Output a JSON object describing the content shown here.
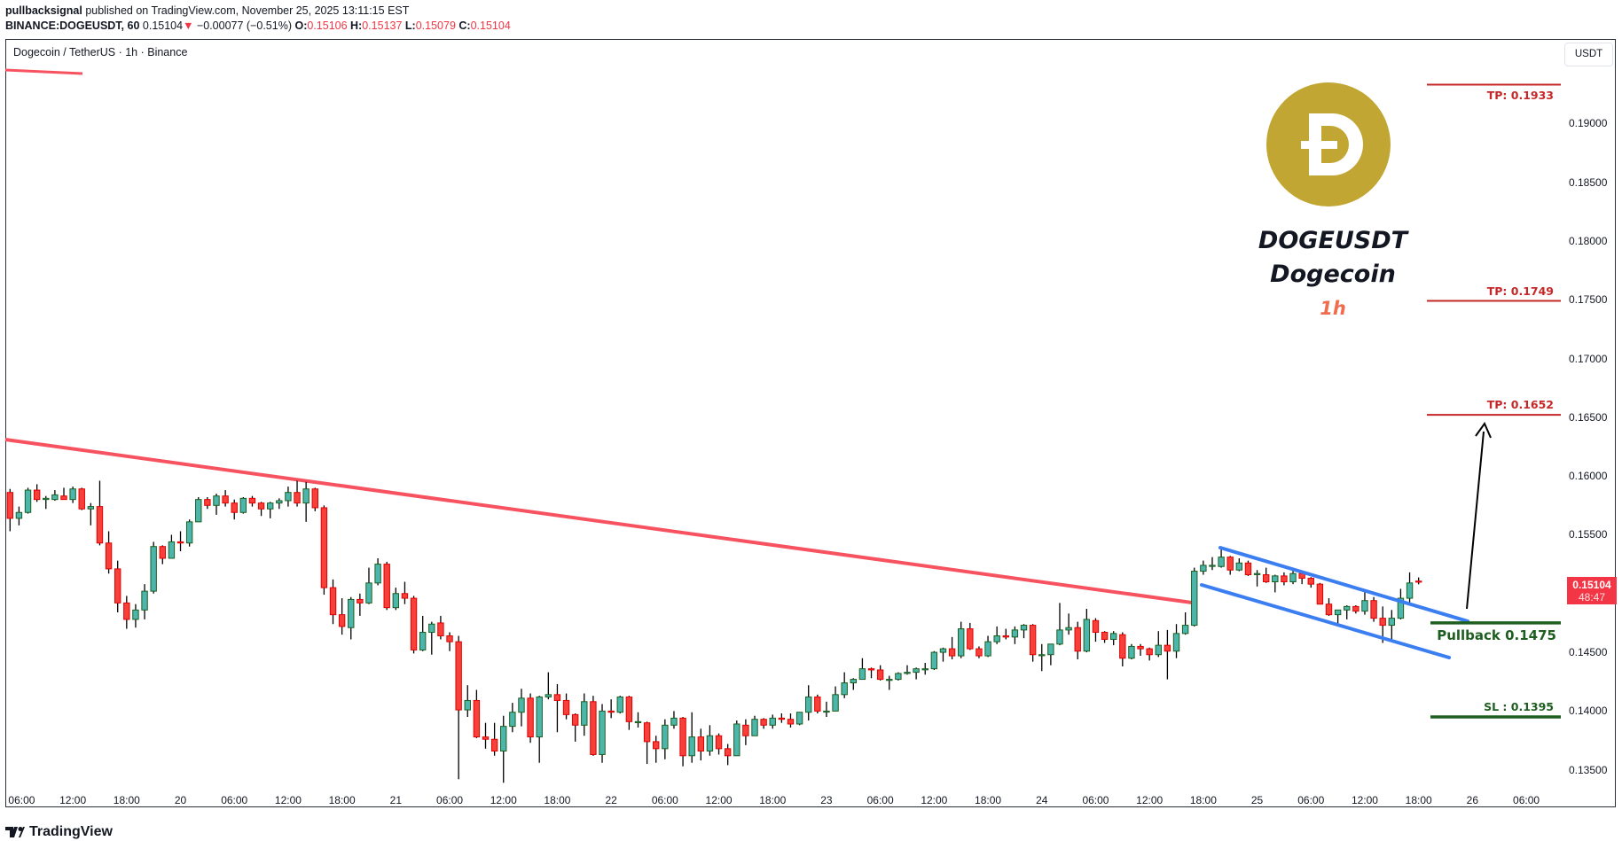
{
  "header": {
    "author": "pullbacksignal",
    "published": "published on TradingView.com, November 25, 2025 13:11:15 EST",
    "symbol": "BINANCE:DOGEUSDT, 60",
    "last": "0.15104",
    "change": "−0.00077 (−0.51%)",
    "o_label": "O:",
    "o": "0.15106",
    "h_label": "H:",
    "h": "0.15137",
    "l_label": "L:",
    "l": "0.15079",
    "c_label": "C:",
    "c": "0.15104"
  },
  "chart_title": "Dogecoin / TetherUS · 1h · Binance",
  "currency_button": "USDT",
  "overlay": {
    "ticker": "DOGEUSDT",
    "name": "Dogecoin",
    "timeframe": "1h",
    "logo_color": "#C2A633",
    "timeframe_color": "#EF6C4F"
  },
  "levels": [
    {
      "label": "TP: 0.1933",
      "price": 0.1933,
      "color": "#C62828",
      "label_pos": "below"
    },
    {
      "label": "TP: 0.1749",
      "price": 0.1749,
      "color": "#C62828",
      "label_pos": "above"
    },
    {
      "label": "TP: 0.1652",
      "price": 0.1652,
      "color": "#C62828",
      "label_pos": "above"
    },
    {
      "label": "Pullback 0.1475",
      "price": 0.1475,
      "color": "#1E5E20",
      "label_pos": "below"
    },
    {
      "label": "SL : 0.1395",
      "price": 0.1395,
      "color": "#1E5E20",
      "label_pos": "above"
    }
  ],
  "last_price_badge": {
    "price": "0.15104",
    "countdown": "48:47",
    "color": "#F23645"
  },
  "footer": {
    "brand": "TradingView"
  },
  "chart_data": {
    "type": "candlestick",
    "interval": "1h",
    "first_candle": "2025-11-19 05:00",
    "ohlc_order": [
      "open",
      "high",
      "low",
      "close"
    ],
    "up_color": "#4DB6AC",
    "down_color": "#F7403A",
    "y_ticks": [
      "0.19000",
      "0.18500",
      "0.18000",
      "0.17500",
      "0.17000",
      "0.16500",
      "0.16000",
      "0.15500",
      "0.15000",
      "0.14500",
      "0.14000",
      "0.13500"
    ],
    "x_ticks": [
      "06:00",
      "12:00",
      "18:00",
      "20",
      "06:00",
      "12:00",
      "18:00",
      "21",
      "06:00",
      "12:00",
      "18:00",
      "22",
      "06:00",
      "12:00",
      "18:00",
      "23",
      "06:00",
      "12:00",
      "18:00",
      "24",
      "06:00",
      "12:00",
      "18:00",
      "25",
      "06:00",
      "12:00",
      "18:00",
      "26",
      "06:00"
    ],
    "ylim": [
      0.133,
      0.196
    ],
    "grid": false,
    "candles": [
      [
        0.1586,
        0.1589,
        0.1553,
        0.1564
      ],
      [
        0.1564,
        0.1574,
        0.1558,
        0.1569
      ],
      [
        0.1569,
        0.159,
        0.1568,
        0.1588
      ],
      [
        0.1588,
        0.1593,
        0.1578,
        0.158
      ],
      [
        0.158,
        0.1583,
        0.1572,
        0.1581
      ],
      [
        0.158,
        0.1588,
        0.1579,
        0.1584
      ],
      [
        0.1583,
        0.159,
        0.158,
        0.158
      ],
      [
        0.158,
        0.1591,
        0.1577,
        0.1589
      ],
      [
        0.1589,
        0.159,
        0.1571,
        0.1572
      ],
      [
        0.1572,
        0.1577,
        0.1558,
        0.1574
      ],
      [
        0.1574,
        0.1596,
        0.1541,
        0.1543
      ],
      [
        0.1543,
        0.1553,
        0.1517,
        0.1521
      ],
      [
        0.1521,
        0.1528,
        0.1484,
        0.1492
      ],
      [
        0.1492,
        0.1498,
        0.147,
        0.1478
      ],
      [
        0.1478,
        0.1491,
        0.1471,
        0.1486
      ],
      [
        0.1486,
        0.1508,
        0.1478,
        0.1502
      ],
      [
        0.1502,
        0.1544,
        0.15,
        0.154
      ],
      [
        0.154,
        0.1541,
        0.1525,
        0.153
      ],
      [
        0.153,
        0.155,
        0.153,
        0.1544
      ],
      [
        0.1544,
        0.1553,
        0.1536,
        0.1543
      ],
      [
        0.1543,
        0.1563,
        0.154,
        0.1561
      ],
      [
        0.1561,
        0.1582,
        0.1561,
        0.158
      ],
      [
        0.158,
        0.1582,
        0.1572,
        0.1575
      ],
      [
        0.1575,
        0.1585,
        0.1567,
        0.1583
      ],
      [
        0.1583,
        0.1588,
        0.1574,
        0.1577
      ],
      [
        0.1577,
        0.158,
        0.1563,
        0.1569
      ],
      [
        0.1569,
        0.1582,
        0.1568,
        0.1581
      ],
      [
        0.1581,
        0.1583,
        0.1574,
        0.1577
      ],
      [
        0.1577,
        0.1578,
        0.1566,
        0.1572
      ],
      [
        0.1572,
        0.1578,
        0.1564,
        0.1577
      ],
      [
        0.1577,
        0.1581,
        0.1572,
        0.1579
      ],
      [
        0.1579,
        0.1591,
        0.1574,
        0.1586
      ],
      [
        0.1586,
        0.1596,
        0.1574,
        0.1577
      ],
      [
        0.1577,
        0.1595,
        0.1561,
        0.1589
      ],
      [
        0.1589,
        0.159,
        0.157,
        0.1573
      ],
      [
        0.1573,
        0.1575,
        0.1499,
        0.1505
      ],
      [
        0.1505,
        0.1512,
        0.1474,
        0.1482
      ],
      [
        0.1482,
        0.1496,
        0.1465,
        0.1472
      ],
      [
        0.1471,
        0.1497,
        0.1461,
        0.1495
      ],
      [
        0.1495,
        0.15,
        0.1481,
        0.1492
      ],
      [
        0.1492,
        0.1522,
        0.1491,
        0.1509
      ],
      [
        0.1509,
        0.153,
        0.1507,
        0.1525
      ],
      [
        0.1525,
        0.1527,
        0.1486,
        0.1488
      ],
      [
        0.1488,
        0.1505,
        0.1486,
        0.15
      ],
      [
        0.15,
        0.151,
        0.1491,
        0.1496
      ],
      [
        0.1496,
        0.1498,
        0.1449,
        0.1452
      ],
      [
        0.1452,
        0.1481,
        0.1451,
        0.1467
      ],
      [
        0.1467,
        0.1476,
        0.1448,
        0.1474
      ],
      [
        0.1475,
        0.1481,
        0.1461,
        0.1464
      ],
      [
        0.1464,
        0.1467,
        0.1451,
        0.1459
      ],
      [
        0.1459,
        0.1464,
        0.1342,
        0.1401
      ],
      [
        0.1401,
        0.1422,
        0.1395,
        0.1409
      ],
      [
        0.1409,
        0.1418,
        0.1377,
        0.1378
      ],
      [
        0.1378,
        0.139,
        0.1368,
        0.1376
      ],
      [
        0.1376,
        0.139,
        0.1362,
        0.1366
      ],
      [
        0.1366,
        0.1396,
        0.1339,
        0.1387
      ],
      [
        0.1387,
        0.1407,
        0.1382,
        0.1399
      ],
      [
        0.1399,
        0.1419,
        0.1387,
        0.1411
      ],
      [
        0.1411,
        0.1415,
        0.1373,
        0.1378
      ],
      [
        0.1378,
        0.1413,
        0.1356,
        0.1412
      ],
      [
        0.1412,
        0.1433,
        0.141,
        0.1414
      ],
      [
        0.1414,
        0.1423,
        0.1382,
        0.1409
      ],
      [
        0.1409,
        0.1415,
        0.1393,
        0.1397
      ],
      [
        0.1397,
        0.1398,
        0.1374,
        0.1388
      ],
      [
        0.1388,
        0.1415,
        0.1379,
        0.1408
      ],
      [
        0.1408,
        0.1413,
        0.1362,
        0.1363
      ],
      [
        0.1363,
        0.1406,
        0.1356,
        0.14
      ],
      [
        0.14,
        0.141,
        0.1394,
        0.1399
      ],
      [
        0.1399,
        0.1413,
        0.1398,
        0.1412
      ],
      [
        0.1412,
        0.1413,
        0.1384,
        0.1391
      ],
      [
        0.1391,
        0.1399,
        0.1386,
        0.1391
      ],
      [
        0.139,
        0.1391,
        0.1355,
        0.1374
      ],
      [
        0.1374,
        0.1379,
        0.1356,
        0.1368
      ],
      [
        0.1368,
        0.1393,
        0.1359,
        0.1388
      ],
      [
        0.1388,
        0.14,
        0.1385,
        0.1394
      ],
      [
        0.1394,
        0.1395,
        0.1353,
        0.1362
      ],
      [
        0.1362,
        0.1399,
        0.1356,
        0.1378
      ],
      [
        0.1378,
        0.1385,
        0.1358,
        0.1366
      ],
      [
        0.1366,
        0.1388,
        0.1362,
        0.1379
      ],
      [
        0.1379,
        0.1381,
        0.1363,
        0.1368
      ],
      [
        0.1368,
        0.1372,
        0.1354,
        0.1362
      ],
      [
        0.1362,
        0.1392,
        0.1362,
        0.1389
      ],
      [
        0.1388,
        0.1393,
        0.1371,
        0.1379
      ],
      [
        0.1379,
        0.1396,
        0.1379,
        0.1393
      ],
      [
        0.1393,
        0.1394,
        0.1385,
        0.1388
      ],
      [
        0.1388,
        0.1397,
        0.1385,
        0.1394
      ],
      [
        0.1394,
        0.1398,
        0.139,
        0.1393
      ],
      [
        0.1393,
        0.1398,
        0.1386,
        0.1389
      ],
      [
        0.1389,
        0.1399,
        0.1388,
        0.1399
      ],
      [
        0.1399,
        0.1422,
        0.1392,
        0.1412
      ],
      [
        0.1412,
        0.1414,
        0.1398,
        0.14
      ],
      [
        0.14,
        0.1408,
        0.1395,
        0.14
      ],
      [
        0.14,
        0.1421,
        0.14,
        0.1414
      ],
      [
        0.1414,
        0.1433,
        0.1411,
        0.1424
      ],
      [
        0.1424,
        0.1428,
        0.1418,
        0.1427
      ],
      [
        0.1427,
        0.1445,
        0.1427,
        0.1436
      ],
      [
        0.1436,
        0.1437,
        0.1428,
        0.1435
      ],
      [
        0.1435,
        0.1439,
        0.1426,
        0.1427
      ],
      [
        0.1427,
        0.143,
        0.1418,
        0.1427
      ],
      [
        0.1427,
        0.1433,
        0.1426,
        0.1432
      ],
      [
        0.1432,
        0.1439,
        0.1431,
        0.1433
      ],
      [
        0.1433,
        0.1437,
        0.1427,
        0.1436
      ],
      [
        0.1436,
        0.1441,
        0.1431,
        0.1436
      ],
      [
        0.1436,
        0.1451,
        0.1435,
        0.145
      ],
      [
        0.145,
        0.1454,
        0.1442,
        0.1453
      ],
      [
        0.1453,
        0.1463,
        0.1444,
        0.1447
      ],
      [
        0.1447,
        0.1476,
        0.1445,
        0.147
      ],
      [
        0.147,
        0.1475,
        0.1452,
        0.1453
      ],
      [
        0.1453,
        0.1455,
        0.1445,
        0.1447
      ],
      [
        0.1447,
        0.1464,
        0.1446,
        0.1459
      ],
      [
        0.1459,
        0.1472,
        0.1457,
        0.1464
      ],
      [
        0.1464,
        0.147,
        0.1461,
        0.1463
      ],
      [
        0.1463,
        0.1472,
        0.1457,
        0.1469
      ],
      [
        0.1469,
        0.1474,
        0.1462,
        0.1473
      ],
      [
        0.1473,
        0.1474,
        0.1442,
        0.1448
      ],
      [
        0.1448,
        0.1457,
        0.1434,
        0.1448
      ],
      [
        0.1448,
        0.1457,
        0.1439,
        0.1457
      ],
      [
        0.1457,
        0.1492,
        0.1456,
        0.1469
      ],
      [
        0.1469,
        0.1483,
        0.1465,
        0.1471
      ],
      [
        0.1471,
        0.1476,
        0.1444,
        0.1451
      ],
      [
        0.1451,
        0.1487,
        0.145,
        0.1478
      ],
      [
        0.1477,
        0.1479,
        0.1459,
        0.1467
      ],
      [
        0.1467,
        0.1468,
        0.1458,
        0.1461
      ],
      [
        0.1461,
        0.1468,
        0.1456,
        0.1466
      ],
      [
        0.1465,
        0.1467,
        0.1438,
        0.1445
      ],
      [
        0.1445,
        0.1457,
        0.1444,
        0.1455
      ],
      [
        0.1455,
        0.1457,
        0.1447,
        0.1453
      ],
      [
        0.1453,
        0.1454,
        0.1443,
        0.1448
      ],
      [
        0.1448,
        0.1468,
        0.1446,
        0.1456
      ],
      [
        0.1456,
        0.1469,
        0.1427,
        0.1451
      ],
      [
        0.1451,
        0.1474,
        0.1445,
        0.1466
      ],
      [
        0.1466,
        0.1484,
        0.1465,
        0.1473
      ],
      [
        0.1473,
        0.1522,
        0.1472,
        0.1519
      ],
      [
        0.1519,
        0.1528,
        0.1516,
        0.1524
      ],
      [
        0.1524,
        0.1531,
        0.152,
        0.1524
      ],
      [
        0.1523,
        0.1538,
        0.1522,
        0.1531
      ],
      [
        0.1531,
        0.1532,
        0.1516,
        0.152
      ],
      [
        0.152,
        0.153,
        0.1519,
        0.1526
      ],
      [
        0.1526,
        0.1528,
        0.1515,
        0.1516
      ],
      [
        0.1517,
        0.152,
        0.1506,
        0.1517
      ],
      [
        0.1516,
        0.1522,
        0.1509,
        0.151
      ],
      [
        0.151,
        0.1516,
        0.1501,
        0.1515
      ],
      [
        0.1515,
        0.1518,
        0.1507,
        0.151
      ],
      [
        0.151,
        0.152,
        0.1508,
        0.1517
      ],
      [
        0.1517,
        0.1518,
        0.1508,
        0.1513
      ],
      [
        0.1513,
        0.1514,
        0.1505,
        0.1508
      ],
      [
        0.1508,
        0.1509,
        0.1491,
        0.1491
      ],
      [
        0.1491,
        0.1496,
        0.1481,
        0.1482
      ],
      [
        0.1482,
        0.1486,
        0.1474,
        0.1486
      ],
      [
        0.1486,
        0.149,
        0.1478,
        0.1489
      ],
      [
        0.1489,
        0.149,
        0.1483,
        0.1485
      ],
      [
        0.1485,
        0.1501,
        0.1482,
        0.1494
      ],
      [
        0.1494,
        0.1497,
        0.1476,
        0.1479
      ],
      [
        0.1479,
        0.1489,
        0.1458,
        0.1473
      ],
      [
        0.1473,
        0.1486,
        0.146,
        0.1479
      ],
      [
        0.1479,
        0.1504,
        0.1478,
        0.1496
      ],
      [
        0.1496,
        0.1518,
        0.1491,
        0.1509
      ],
      [
        0.15106,
        0.15137,
        0.15079,
        0.15104
      ]
    ]
  }
}
